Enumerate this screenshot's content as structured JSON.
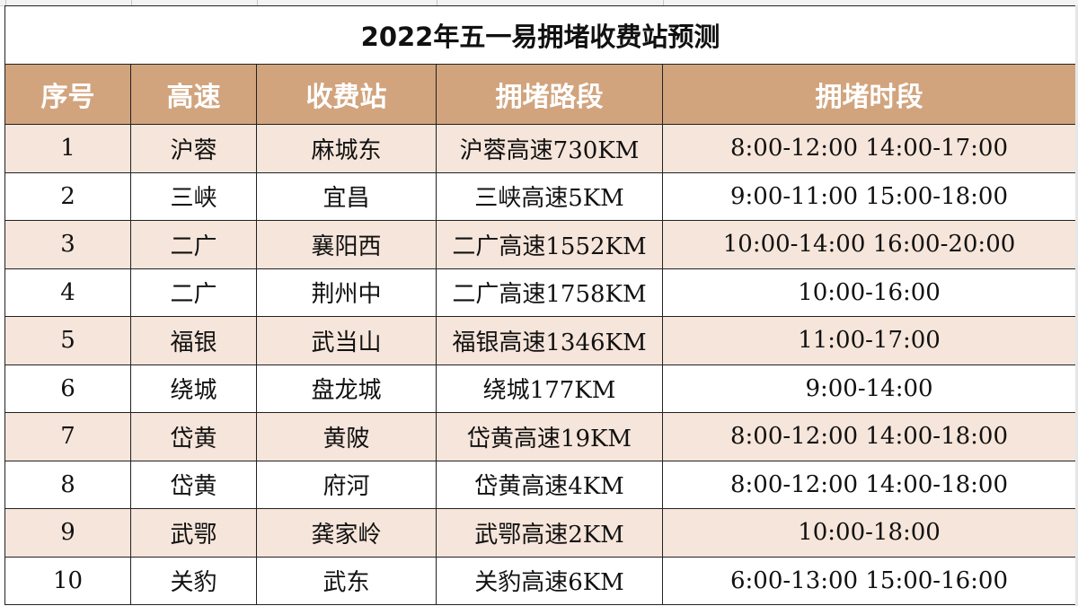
{
  "table": {
    "title": "2022年五一易拥堵收费站预测",
    "headers": [
      "序号",
      "高速",
      "收费站",
      "拥堵路段",
      "拥堵时段"
    ],
    "rows": [
      [
        "1",
        "沪蓉",
        "麻城东",
        "沪蓉高速730KM",
        "8:00-12:00 14:00-17:00"
      ],
      [
        "2",
        "三峡",
        "宜昌",
        "三峡高速5KM",
        "9:00-11:00 15:00-18:00"
      ],
      [
        "3",
        "二广",
        "襄阳西",
        "二广高速1552KM",
        "10:00-14:00 16:00-20:00"
      ],
      [
        "4",
        "二广",
        "荆州中",
        "二广高速1758KM",
        "10:00-16:00"
      ],
      [
        "5",
        "福银",
        "武当山",
        "福银高速1346KM",
        "11:00-17:00"
      ],
      [
        "6",
        "绕城",
        "盘龙城",
        "绕城177KM",
        "9:00-14:00"
      ],
      [
        "7",
        "岱黄",
        "黄陂",
        "岱黄高速19KM",
        "8:00-12:00 14:00-18:00"
      ],
      [
        "8",
        "岱黄",
        "府河",
        "岱黄高速4KM",
        "8:00-12:00 14:00-18:00"
      ],
      [
        "9",
        "武鄂",
        "龚家岭",
        "武鄂高速2KM",
        "10:00-18:00"
      ],
      [
        "10",
        "关豹",
        "武东",
        "关豹高速6KM",
        "6:00-13:00 15:00-16:00"
      ]
    ]
  },
  "colors": {
    "header_bg": "#d1a47e",
    "header_text": "#ffffff",
    "shaded_row": "#f6e5da",
    "plain_row": "#ffffff",
    "border": "#222222"
  }
}
